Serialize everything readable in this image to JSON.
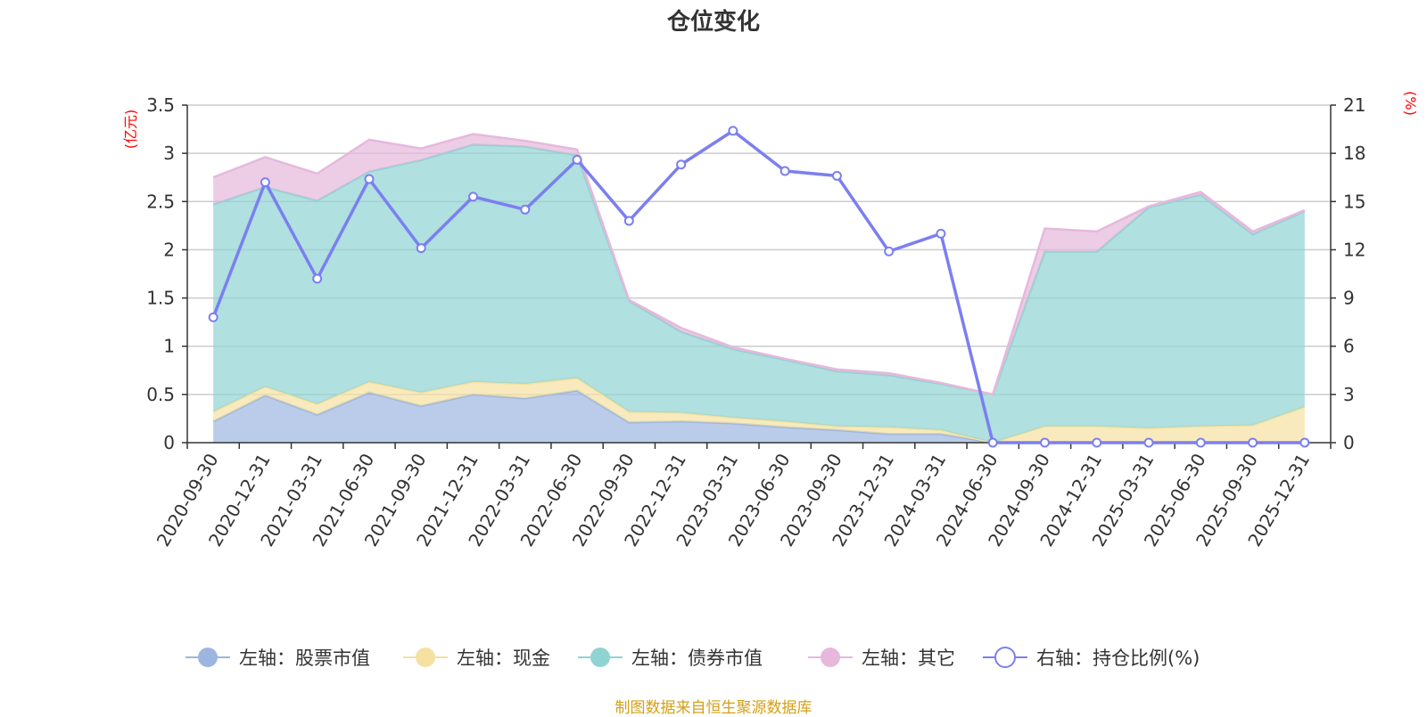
{
  "chart_data": {
    "type": "area",
    "title": "仓位变化",
    "categories": [
      "2020-09-30",
      "2020-12-31",
      "2021-03-31",
      "2021-06-30",
      "2021-09-30",
      "2021-12-31",
      "2022-03-31",
      "2022-06-30",
      "2022-09-30",
      "2022-12-31",
      "2023-03-31",
      "2023-06-30",
      "2023-09-30",
      "2023-12-31",
      "2024-03-31",
      "2024-06-30",
      "2024-09-30",
      "2024-12-31",
      "2025-03-31",
      "2025-06-30",
      "2025-09-30",
      "2025-12-31"
    ],
    "left_axis": {
      "unit": "(亿元)",
      "ylim": [
        0,
        3.5
      ],
      "ticks": [
        "0",
        "0.5",
        "1",
        "1.5",
        "2",
        "2.5",
        "3",
        "3.5"
      ]
    },
    "right_axis": {
      "unit": "(%)",
      "ylim": [
        0,
        21
      ],
      "ticks": [
        "0",
        "3",
        "6",
        "9",
        "12",
        "15",
        "18",
        "21"
      ]
    },
    "series": [
      {
        "name": "左轴：股票市值",
        "axis": "left",
        "stacked": true,
        "color": "#9cb6e0",
        "values": [
          0.22,
          0.49,
          0.29,
          0.52,
          0.38,
          0.5,
          0.46,
          0.54,
          0.21,
          0.22,
          0.2,
          0.16,
          0.13,
          0.09,
          0.09,
          0.0,
          0.0,
          0.0,
          0.0,
          0.0,
          0.0,
          0.0
        ]
      },
      {
        "name": "左轴：现金",
        "axis": "left",
        "stacked": true,
        "color": "#f5e1a0",
        "values": [
          0.1,
          0.09,
          0.11,
          0.11,
          0.14,
          0.13,
          0.15,
          0.13,
          0.11,
          0.09,
          0.06,
          0.06,
          0.04,
          0.07,
          0.04,
          0.0,
          0.17,
          0.17,
          0.15,
          0.17,
          0.18,
          0.37
        ]
      },
      {
        "name": "左轴：债券市值",
        "axis": "left",
        "stacked": true,
        "color": "#8fd3d3",
        "values": [
          2.15,
          2.07,
          2.11,
          2.18,
          2.41,
          2.46,
          2.46,
          2.31,
          1.15,
          0.84,
          0.71,
          0.64,
          0.57,
          0.54,
          0.48,
          0.5,
          1.81,
          1.81,
          2.29,
          2.4,
          1.98,
          2.03
        ]
      },
      {
        "name": "左轴：其它",
        "axis": "left",
        "stacked": true,
        "color": "#e6b8dc",
        "values": [
          0.28,
          0.31,
          0.28,
          0.33,
          0.12,
          0.11,
          0.06,
          0.06,
          0.01,
          0.04,
          0.02,
          0.01,
          0.02,
          0.02,
          0.01,
          0.0,
          0.24,
          0.21,
          0.01,
          0.03,
          0.03,
          0.01
        ]
      },
      {
        "name": "右轴：持仓比例(%)",
        "axis": "right",
        "type": "line",
        "color": "#7b7ff0",
        "values": [
          7.8,
          16.2,
          10.2,
          16.4,
          12.1,
          15.3,
          14.5,
          17.6,
          13.8,
          17.3,
          19.4,
          16.9,
          16.6,
          11.9,
          13.0,
          0,
          0,
          0,
          0,
          0,
          0,
          0
        ]
      }
    ],
    "legend_position": "bottom",
    "source_note": "制图数据来自恒生聚源数据库"
  }
}
